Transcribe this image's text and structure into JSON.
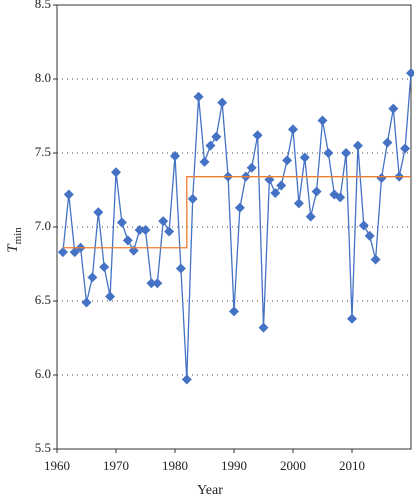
{
  "chart_data": {
    "type": "line",
    "xlabel": "Year",
    "ylabel": "T",
    "ylabel_sub": "min",
    "xlim": [
      1960,
      2020
    ],
    "ylim": [
      5.5,
      8.5
    ],
    "xticks": [
      1960,
      1970,
      1980,
      1990,
      2000,
      2010
    ],
    "yticks": [
      {
        "value": 5.5,
        "label": "5.5"
      },
      {
        "value": 6,
        "label": "6.0"
      },
      {
        "value": 6.5,
        "label": "6.5"
      },
      {
        "value": 7,
        "label": "7.0"
      },
      {
        "value": 7.5,
        "label": "7.5"
      },
      {
        "value": 8,
        "label": "8.0"
      },
      {
        "value": 8.5,
        "label": "8.5"
      }
    ],
    "grid": true,
    "series": [
      {
        "color": "#4472c4",
        "marker": "diamond",
        "x": [
          1961,
          1962,
          1963,
          1964,
          1965,
          1966,
          1967,
          1968,
          1969,
          1970,
          1971,
          1972,
          1973,
          1974,
          1975,
          1976,
          1977,
          1978,
          1979,
          1980,
          1981,
          1982,
          1983,
          1984,
          1985,
          1986,
          1987,
          1988,
          1989,
          1990,
          1991,
          1992,
          1993,
          1994,
          1995,
          1996,
          1997,
          1998,
          1999,
          2000,
          2001,
          2002,
          2003,
          2004,
          2005,
          2006,
          2007,
          2008,
          2009,
          2010,
          2011,
          2012,
          2013,
          2014,
          2015,
          2016,
          2017,
          2018,
          2019,
          2020
        ],
        "values": [
          6.83,
          7.22,
          6.83,
          6.86,
          6.49,
          6.66,
          7.1,
          6.73,
          6.53,
          7.37,
          7.03,
          6.91,
          6.84,
          6.98,
          6.98,
          6.62,
          6.62,
          7.04,
          6.97,
          7.48,
          6.72,
          5.97,
          7.19,
          7.88,
          7.44,
          7.55,
          7.61,
          7.84,
          7.34,
          6.43,
          7.13,
          7.34,
          7.4,
          7.62,
          6.32,
          7.32,
          7.23,
          7.28,
          7.45,
          7.66,
          7.16,
          7.47,
          7.07,
          7.24,
          7.72,
          7.5,
          7.22,
          7.2,
          7.5,
          6.38,
          7.55,
          7.01,
          6.94,
          6.78,
          7.33,
          7.57,
          7.8,
          7.34,
          7.53,
          8.04
        ]
      },
      {
        "color": "#ed7d31",
        "marker": "none",
        "x": [
          1961,
          1982,
          1982,
          2020
        ],
        "values": [
          6.86,
          6.86,
          7.34,
          7.34
        ]
      }
    ]
  }
}
